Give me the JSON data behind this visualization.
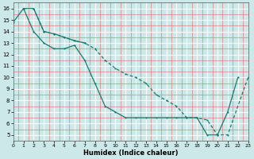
{
  "xlabel": "Humidex (Indice chaleur)",
  "bg_color": "#cce8e8",
  "major_grid_color": "#ffffff",
  "minor_grid_color": "#e08080",
  "line_color": "#1a7a6e",
  "line1_x": [
    0,
    1,
    2,
    3,
    4,
    5,
    6,
    7,
    8,
    9,
    10,
    11,
    12,
    13,
    14,
    15,
    16,
    17,
    18,
    19,
    20,
    21,
    22
  ],
  "line1_y": [
    14.8,
    16.0,
    14.0,
    13.0,
    12.5,
    12.5,
    12.8,
    11.5,
    9.5,
    7.5,
    7.0,
    6.5,
    6.5,
    6.5,
    6.5,
    6.5,
    6.5,
    6.5,
    6.5,
    5.0,
    5.0,
    7.0,
    10.0
  ],
  "line2_x": [
    1,
    2,
    3,
    4,
    5,
    6,
    7
  ],
  "line2_y": [
    16.0,
    16.0,
    14.0,
    13.8,
    13.5,
    13.2,
    13.0
  ],
  "line3_x": [
    2,
    3,
    4,
    5,
    6,
    7,
    8,
    9,
    10,
    11,
    12,
    13,
    14,
    15,
    16,
    17,
    18,
    19,
    20,
    21,
    23
  ],
  "line3_y": [
    16.0,
    14.0,
    13.8,
    13.5,
    13.2,
    13.0,
    12.5,
    11.5,
    10.8,
    10.3,
    10.0,
    9.5,
    8.5,
    8.0,
    7.5,
    6.5,
    6.5,
    6.3,
    5.0,
    5.0,
    10.0
  ],
  "xlim": [
    0,
    23
  ],
  "ylim": [
    4.5,
    16.5
  ],
  "xticks": [
    0,
    1,
    2,
    3,
    4,
    5,
    6,
    7,
    8,
    9,
    10,
    11,
    12,
    13,
    14,
    15,
    16,
    17,
    18,
    19,
    20,
    21,
    22,
    23
  ],
  "yticks": [
    5,
    6,
    7,
    8,
    9,
    10,
    11,
    12,
    13,
    14,
    15,
    16
  ]
}
